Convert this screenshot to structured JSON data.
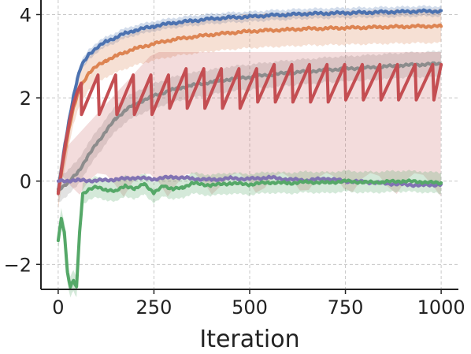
{
  "chart_data": {
    "type": "line",
    "title": "",
    "xlabel": "Iteration",
    "ylabel": "",
    "xlim": [
      -45,
      1045
    ],
    "ylim": [
      -2.6,
      4.35
    ],
    "xticks": [
      0,
      250,
      500,
      750,
      1000
    ],
    "xtick_labels": [
      "0",
      "250",
      "500",
      "750",
      "1000"
    ],
    "yticks": [
      -2,
      0,
      2,
      4
    ],
    "ytick_labels": [
      "−2",
      "0",
      "2",
      "4"
    ],
    "grid": true,
    "legend": "none",
    "series": [
      {
        "color": "#4c72b0",
        "x": [
          0,
          10,
          20,
          30,
          40,
          50,
          60,
          80,
          100,
          125,
          150,
          175,
          200,
          250,
          300,
          350,
          400,
          450,
          500,
          550,
          600,
          650,
          700,
          750,
          800,
          850,
          900,
          950,
          1000
        ],
        "y": [
          -0.25,
          0.4,
          1.0,
          1.55,
          2.05,
          2.45,
          2.75,
          3.05,
          3.2,
          3.35,
          3.45,
          3.55,
          3.62,
          3.72,
          3.8,
          3.85,
          3.9,
          3.93,
          3.95,
          3.98,
          4.0,
          4.02,
          4.03,
          4.04,
          4.05,
          4.06,
          4.07,
          4.08,
          4.08
        ],
        "band": 0.12
      },
      {
        "color": "#dd8452",
        "x": [
          0,
          10,
          20,
          30,
          40,
          50,
          60,
          80,
          100,
          125,
          150,
          175,
          200,
          250,
          300,
          350,
          400,
          450,
          500,
          550,
          600,
          650,
          700,
          750,
          800,
          850,
          900,
          950,
          1000
        ],
        "y": [
          -0.3,
          0.3,
          0.85,
          1.35,
          1.75,
          2.05,
          2.3,
          2.6,
          2.75,
          2.9,
          3.0,
          3.1,
          3.18,
          3.3,
          3.4,
          3.46,
          3.52,
          3.56,
          3.6,
          3.62,
          3.64,
          3.66,
          3.67,
          3.68,
          3.69,
          3.7,
          3.71,
          3.72,
          3.72
        ],
        "band": 0.4
      },
      {
        "color": "#8c8c8c",
        "x": [
          0,
          25,
          50,
          75,
          100,
          125,
          150,
          175,
          200,
          250,
          300,
          350,
          400,
          450,
          500,
          550,
          600,
          650,
          700,
          750,
          800,
          850,
          900,
          950,
          1000
        ],
        "y": [
          -0.2,
          -0.05,
          0.2,
          0.55,
          0.9,
          1.2,
          1.5,
          1.7,
          1.85,
          2.05,
          2.2,
          2.3,
          2.38,
          2.45,
          2.5,
          2.55,
          2.6,
          2.63,
          2.67,
          2.7,
          2.72,
          2.75,
          2.78,
          2.8,
          2.82
        ],
        "band": 0.3
      },
      {
        "color": "#c44e52",
        "x": [
          0,
          10,
          20,
          30,
          40,
          50,
          60
        ],
        "y": [
          -0.3,
          0.35,
          0.95,
          1.45,
          1.85,
          2.15,
          2.35
        ],
        "sawtooth": {
          "period": 46,
          "start": 60,
          "end": 1000,
          "low": [
            1.6,
            1.75,
            1.9,
            1.95
          ],
          "high": [
            2.55,
            2.7,
            2.8,
            2.8
          ]
        },
        "band_low": -0.4,
        "band_high": 3.1
      },
      {
        "color": "#8172b3",
        "x": [
          0,
          50,
          100,
          150,
          200,
          250,
          300,
          350,
          400,
          450,
          500,
          550,
          600,
          650,
          700,
          750,
          800,
          850,
          900,
          950,
          1000
        ],
        "y": [
          0.0,
          0.02,
          0.01,
          0.04,
          0.08,
          0.05,
          0.1,
          0.06,
          0.03,
          0.07,
          0.05,
          0.09,
          0.04,
          0.02,
          0.06,
          0.0,
          -0.02,
          -0.05,
          -0.08,
          -0.1,
          -0.08
        ],
        "band": 0.05
      },
      {
        "color": "#55a868",
        "x": [
          0,
          8,
          16,
          24,
          32,
          40,
          48,
          56,
          64,
          80,
          100,
          125,
          150,
          175,
          200,
          225,
          250,
          275,
          300,
          325,
          350,
          400,
          450,
          500,
          550,
          600,
          650,
          700,
          750,
          800,
          850,
          900,
          950,
          1000
        ],
        "y": [
          -1.4,
          -0.9,
          -1.2,
          -2.2,
          -2.55,
          -2.4,
          -2.55,
          -1.2,
          -0.3,
          -0.2,
          -0.15,
          -0.2,
          -0.25,
          -0.1,
          -0.2,
          -0.05,
          -0.3,
          -0.1,
          -0.2,
          -0.15,
          -0.05,
          -0.1,
          -0.05,
          -0.08,
          -0.03,
          -0.05,
          -0.02,
          -0.04,
          0.0,
          -0.03,
          -0.02,
          0.0,
          -0.02,
          -0.05
        ],
        "band": 0.25
      }
    ]
  }
}
